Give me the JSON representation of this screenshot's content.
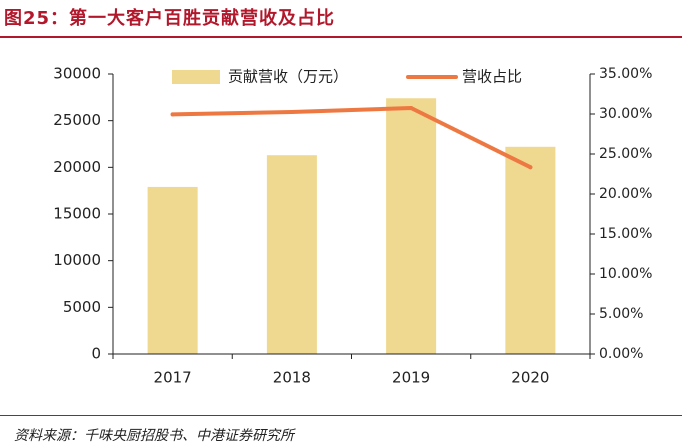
{
  "figure": {
    "title": "图25：第一大客户百胜贡献营收及占比",
    "source": "资料来源：千味央厨招股书、中港证券研究所"
  },
  "colors": {
    "accent": "#b2182b",
    "bar": "#efd88f",
    "line": "#ee7842"
  },
  "chart_data": {
    "type": "bar",
    "categories": [
      "2017",
      "2018",
      "2019",
      "2020"
    ],
    "series": [
      {
        "name": "贡献营收（万元）",
        "type": "bar",
        "axis": "left",
        "values": [
          17900,
          21300,
          27400,
          22200
        ]
      },
      {
        "name": "营收占比",
        "type": "line",
        "axis": "right",
        "values": [
          0.2995,
          0.3025,
          0.3075,
          0.2335
        ]
      }
    ],
    "y_left": {
      "ylim": [
        0,
        30000
      ],
      "ticks": [
        "0",
        "5000",
        "10000",
        "15000",
        "20000",
        "25000",
        "30000"
      ]
    },
    "y_right": {
      "ylim": [
        0,
        0.35
      ],
      "ticks": [
        "0.00%",
        "5.00%",
        "10.00%",
        "15.00%",
        "20.00%",
        "25.00%",
        "30.00%",
        "35.00%"
      ]
    },
    "legend_position": "top-center",
    "grid": false
  }
}
